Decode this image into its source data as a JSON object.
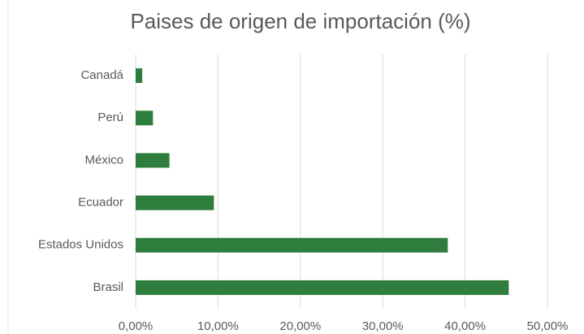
{
  "chart_data": {
    "type": "bar",
    "orientation": "horizontal",
    "title": "Paises de origen de importación (%)",
    "categories": [
      "Canadá",
      "Perú",
      "México",
      "Ecuador",
      "Estados Unidos",
      "Brasil"
    ],
    "values": [
      0.8,
      2.1,
      4.1,
      9.5,
      37.9,
      45.3
    ],
    "color": "#2e7d3c",
    "xlim": [
      0,
      50
    ],
    "xticks": [
      {
        "value": 0,
        "label": "0,00%"
      },
      {
        "value": 10,
        "label": "10,00%"
      },
      {
        "value": 20,
        "label": "20,00%"
      },
      {
        "value": 30,
        "label": "30,00%"
      },
      {
        "value": 40,
        "label": "40,00%"
      },
      {
        "value": 50,
        "label": "50,00%"
      }
    ],
    "grid": true
  }
}
